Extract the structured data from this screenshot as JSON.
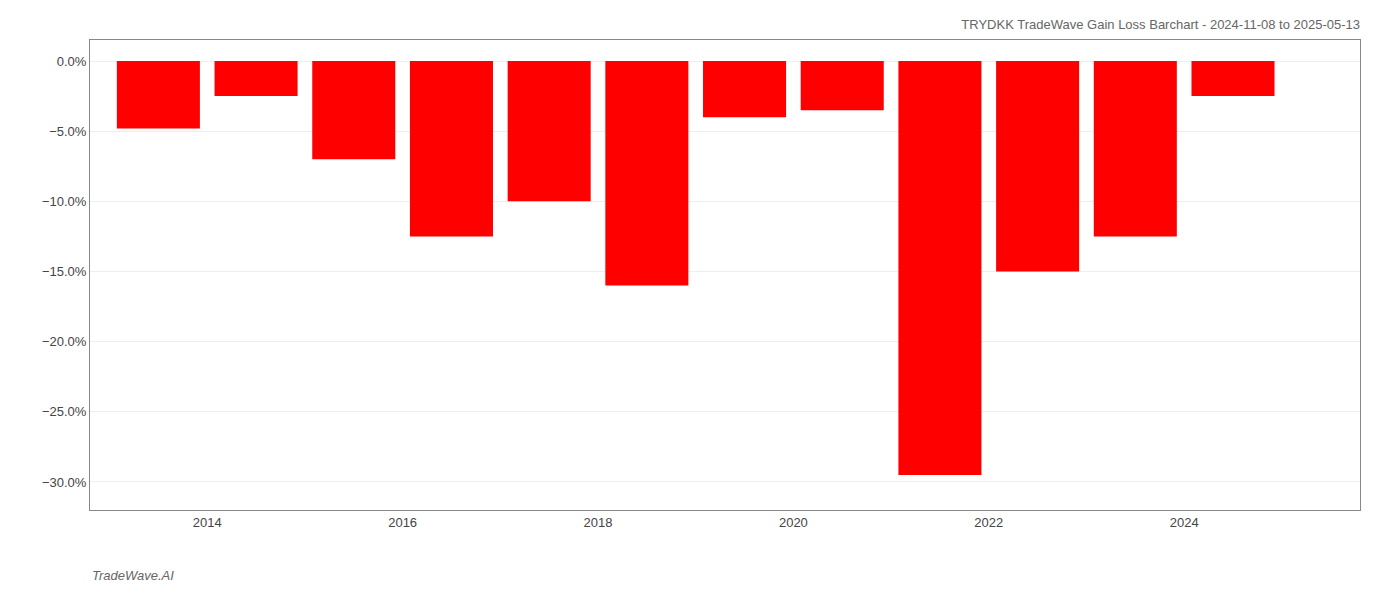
{
  "chart_data": {
    "type": "bar",
    "title": "TRYDKK TradeWave Gain Loss Barchart - 2024-11-08 to 2025-05-13",
    "annotations": [
      "TradeWave.AI"
    ],
    "x": [
      2013.5,
      2014.5,
      2015.5,
      2016.5,
      2017.5,
      2018.5,
      2019.5,
      2020.5,
      2021.5,
      2022.5,
      2023.5,
      2024.5
    ],
    "values": [
      -4.8,
      -2.5,
      -7.0,
      -12.5,
      -10.0,
      -16.0,
      -4.0,
      -3.5,
      -29.5,
      -15.0,
      -12.5,
      -2.5
    ],
    "color": "#ff0000",
    "xlim": [
      2012.8,
      2025.8
    ],
    "xticks": [
      2014,
      2016,
      2018,
      2020,
      2022,
      2024
    ],
    "ylim": [
      -32,
      1.5
    ],
    "yticks": [
      {
        "value": 0.0,
        "label": "0.0%"
      },
      {
        "value": -5.0,
        "label": "−5.0%"
      },
      {
        "value": -10.0,
        "label": "−10.0%"
      },
      {
        "value": -15.0,
        "label": "−15.0%"
      },
      {
        "value": -20.0,
        "label": "−20.0%"
      },
      {
        "value": -25.0,
        "label": "−25.0%"
      },
      {
        "value": -30.0,
        "label": "−30.0%"
      }
    ],
    "grid": true
  }
}
